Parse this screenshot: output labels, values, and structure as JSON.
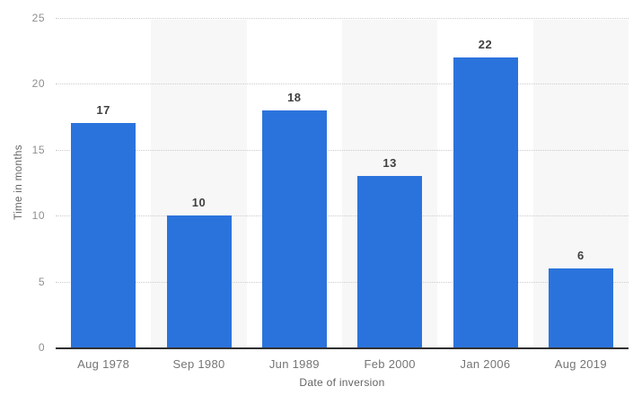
{
  "chart_data": {
    "type": "bar",
    "categories": [
      "Aug 1978",
      "Sep 1980",
      "Jun 1989",
      "Feb 2000",
      "Jan 2006",
      "Aug 2019"
    ],
    "values": [
      17,
      10,
      18,
      13,
      22,
      6
    ],
    "value_labels": [
      "17",
      "10",
      "18",
      "13",
      "22",
      "6"
    ],
    "title": "",
    "xlabel": "Date of inversion",
    "ylabel": "Time in months",
    "ylim": [
      0,
      25
    ],
    "yticks": [
      0,
      5,
      10,
      15,
      20,
      25
    ],
    "grid": "dotted-horizontal",
    "legend_position": "none",
    "banded_columns": [
      1,
      3,
      5
    ],
    "colors": {
      "bar": "#2b73dc",
      "band": "#f7f7f7",
      "value_label": "#404040",
      "tick_label": "#8f8f8f",
      "category_label": "#757575",
      "axis_title": "#636363",
      "axis_line": "#303030",
      "gridline": "#cccccc",
      "background": "#ffffff"
    }
  }
}
